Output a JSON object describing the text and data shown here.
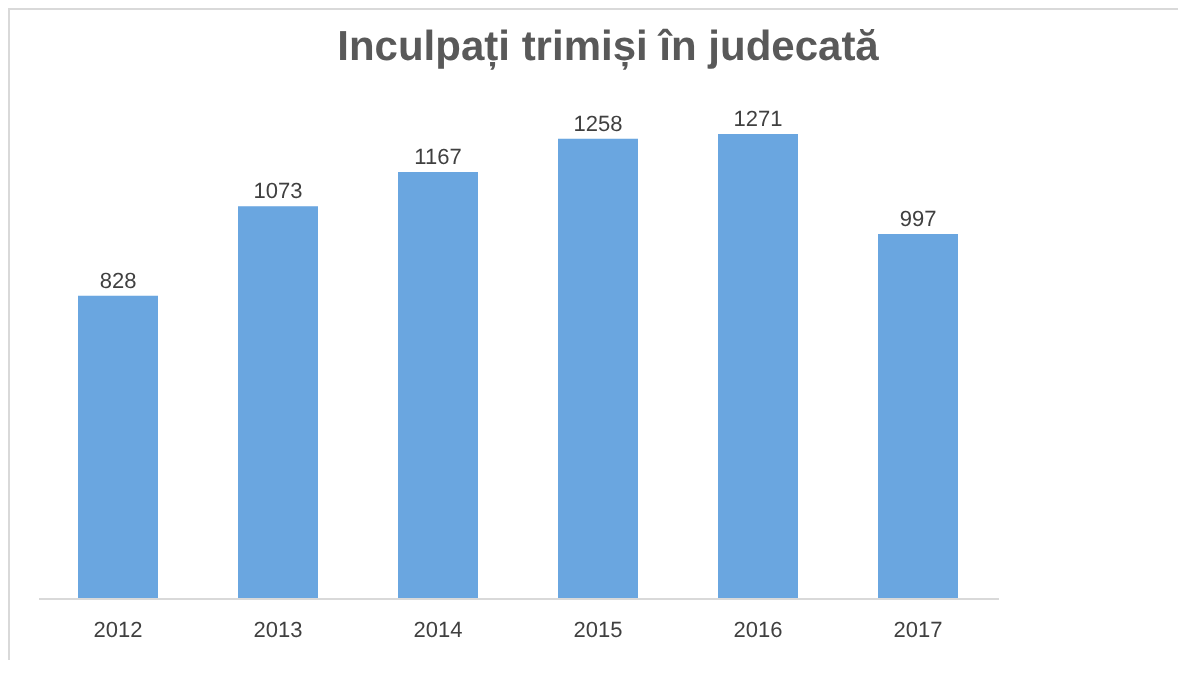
{
  "chart_data": {
    "type": "bar",
    "title": "Inculpați trimiși în judecată",
    "categories": [
      "2012",
      "2013",
      "2014",
      "2015",
      "2016",
      "2017"
    ],
    "values": [
      828,
      1073,
      1167,
      1258,
      1271,
      997
    ],
    "color": "#6aa6e0",
    "data_labels": true
  }
}
